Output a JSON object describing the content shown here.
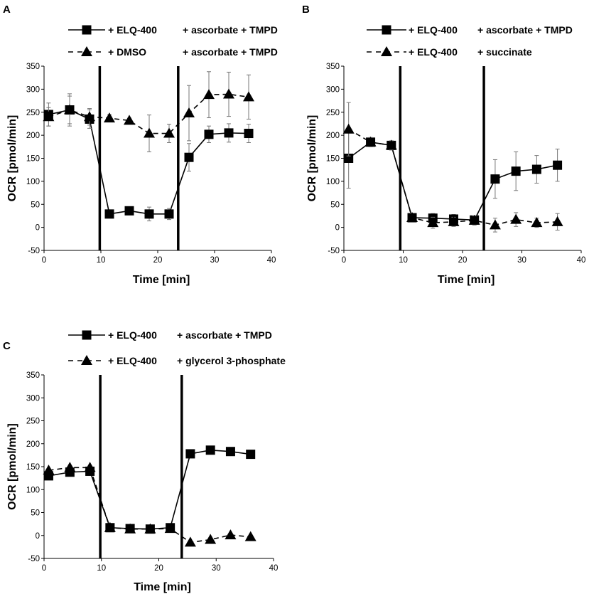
{
  "chart_data": [
    {
      "type": "line",
      "panel": "A",
      "xlabel": "Time [min]",
      "ylabel": "OCR [pmol/min]",
      "xlim": [
        0,
        40
      ],
      "ylim": [
        -50,
        350
      ],
      "xticks": [
        0,
        10,
        20,
        30,
        40
      ],
      "yticks": [
        -50,
        0,
        50,
        100,
        150,
        200,
        250,
        300,
        350
      ],
      "vlines": [
        9.8,
        23.6
      ],
      "series": [
        {
          "name": "+ ELQ-400",
          "legend_parts": [
            "+ ELQ-400",
            "+ ascorbate + TMPD"
          ],
          "marker": "square",
          "linestyle": "solid",
          "x": [
            0.8,
            4.5,
            8.0,
            11.5,
            15.0,
            18.5,
            22.0,
            25.5,
            29.0,
            32.5,
            36.0
          ],
          "y": [
            245,
            255,
            235,
            29,
            36,
            29,
            29,
            152,
            202,
            205,
            204
          ],
          "err": [
            25,
            35,
            20,
            8,
            5,
            15,
            12,
            30,
            18,
            20,
            20
          ]
        },
        {
          "name": "+ DMSO",
          "legend_parts": [
            "+ DMSO",
            "+ ascorbate + TMPD"
          ],
          "marker": "triangle",
          "linestyle": "dashed",
          "x": [
            0.8,
            4.5,
            8.0,
            11.5,
            15.0,
            18.5,
            22.0,
            25.5,
            29.0,
            32.5,
            36.0
          ],
          "y": [
            240,
            255,
            240,
            237,
            232,
            204,
            204,
            248,
            288,
            289,
            283
          ],
          "err": [
            20,
            30,
            18,
            8,
            5,
            40,
            20,
            60,
            50,
            48,
            48
          ]
        }
      ]
    },
    {
      "type": "line",
      "panel": "B",
      "xlabel": "Time [min]",
      "ylabel": "OCR [pmol/min]",
      "xlim": [
        0,
        40
      ],
      "ylim": [
        -50,
        350
      ],
      "xticks": [
        0,
        10,
        20,
        30,
        40
      ],
      "yticks": [
        -50,
        0,
        50,
        100,
        150,
        200,
        250,
        300,
        350
      ],
      "vlines": [
        9.5,
        23.6
      ],
      "series": [
        {
          "name": "+ ELQ-400",
          "legend_parts": [
            "+ ELQ-400",
            "+ ascorbate + TMPD"
          ],
          "marker": "square",
          "linestyle": "solid",
          "x": [
            0.8,
            4.5,
            8.0,
            11.5,
            15.0,
            18.5,
            22.0,
            25.5,
            29.0,
            32.5,
            36.0
          ],
          "y": [
            150,
            185,
            178,
            21,
            20,
            18,
            16,
            105,
            122,
            126,
            135
          ],
          "err": [
            65,
            10,
            10,
            8,
            10,
            10,
            8,
            42,
            42,
            30,
            35
          ]
        },
        {
          "name": "+ ELQ-400",
          "legend_parts": [
            "+ ELQ-400",
            "+ succinate"
          ],
          "marker": "triangle",
          "linestyle": "dashed",
          "x": [
            0.8,
            4.5,
            8.0,
            11.5,
            15.0,
            18.5,
            22.0,
            25.5,
            29.0,
            32.5,
            36.0
          ],
          "y": [
            213,
            185,
            178,
            21,
            10,
            12,
            15,
            5,
            17,
            10,
            12
          ],
          "err": [
            58,
            10,
            10,
            10,
            12,
            10,
            10,
            15,
            15,
            10,
            18
          ]
        }
      ]
    },
    {
      "type": "line",
      "panel": "C",
      "xlabel": "Time [min]",
      "ylabel": "OCR [pmol/min]",
      "xlim": [
        0,
        40
      ],
      "ylim": [
        -50,
        350
      ],
      "xticks": [
        0,
        10,
        20,
        30,
        40
      ],
      "yticks": [
        -50,
        0,
        50,
        100,
        150,
        200,
        250,
        300,
        350
      ],
      "vlines": [
        9.8,
        24.0
      ],
      "series": [
        {
          "name": "+ ELQ-400",
          "legend_parts": [
            "+ ELQ-400",
            "+ ascorbate + TMPD"
          ],
          "marker": "square",
          "linestyle": "solid",
          "x": [
            0.8,
            4.5,
            8.0,
            11.5,
            15.0,
            18.5,
            22.0,
            25.5,
            29.0,
            32.5,
            36.0
          ],
          "y": [
            130,
            138,
            140,
            17,
            15,
            14,
            17,
            178,
            186,
            183,
            177
          ],
          "err": [
            0,
            0,
            0,
            0,
            0,
            0,
            0,
            0,
            0,
            0,
            0
          ]
        },
        {
          "name": "+ ELQ-400",
          "legend_parts": [
            "+ ELQ-400",
            "+ glycerol 3-phosphate"
          ],
          "marker": "triangle",
          "linestyle": "dashed",
          "x": [
            0.8,
            4.5,
            8.0,
            11.5,
            15.0,
            18.5,
            22.0,
            25.5,
            29.0,
            32.5,
            36.0
          ],
          "y": [
            142,
            148,
            148,
            17,
            14,
            14,
            15,
            -15,
            -9,
            1,
            -3
          ],
          "err": [
            0,
            0,
            0,
            0,
            0,
            0,
            0,
            0,
            0,
            0,
            0
          ]
        }
      ]
    }
  ]
}
